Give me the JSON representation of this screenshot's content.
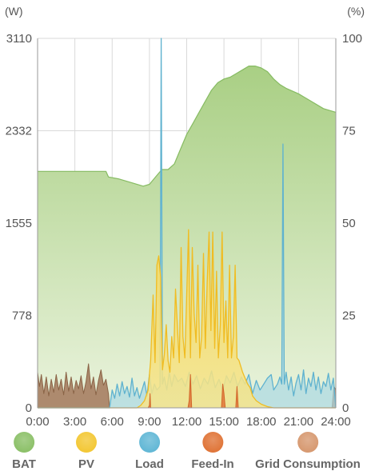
{
  "chart_data": {
    "type": "area",
    "left_unit": "(W)",
    "right_unit": "(%)",
    "x_ticks": [
      "0:00",
      "3:00",
      "6:00",
      "9:00",
      "12:00",
      "15:00",
      "18:00",
      "21:00",
      "24:00"
    ],
    "y_left_ticks": [
      "0",
      "778",
      "1555",
      "2332",
      "3110"
    ],
    "y_right_ticks": [
      "0",
      "25",
      "50",
      "75",
      "100"
    ],
    "xlim": [
      0,
      24
    ],
    "ylim_left": [
      0,
      3110
    ],
    "ylim_right": [
      0,
      100
    ],
    "grid": true,
    "series": [
      {
        "name": "BAT",
        "axis": "right",
        "color": "#8dc16a",
        "x": [
          0,
          5.5,
          5.7,
          6.5,
          7.5,
          8.5,
          9.0,
          9.5,
          10.0,
          10.5,
          11.0,
          11.5,
          12.0,
          12.5,
          13.0,
          13.5,
          14.0,
          14.5,
          15.0,
          15.5,
          16.0,
          16.5,
          17.0,
          17.5,
          18.0,
          18.5,
          19.0,
          19.5,
          20.0,
          21.0,
          22.0,
          23.0,
          24.0
        ],
        "values": [
          64,
          64,
          62.5,
          62,
          61,
          60,
          60.5,
          62.5,
          64.5,
          64.5,
          66,
          70,
          74,
          77,
          80,
          83,
          86,
          88,
          89,
          89.5,
          90.5,
          91.5,
          92.5,
          92.5,
          92,
          91,
          89,
          87.5,
          86.5,
          85,
          83,
          81,
          80
        ]
      },
      {
        "name": "PV",
        "axis": "left",
        "color": "#f3c837",
        "x": [
          0,
          8.0,
          8.3,
          8.6,
          8.9,
          9.1,
          9.3,
          9.45,
          9.6,
          9.75,
          9.9,
          10.05,
          10.2,
          10.35,
          10.5,
          10.65,
          10.8,
          10.95,
          11.1,
          11.25,
          11.4,
          11.55,
          11.7,
          11.85,
          12.0,
          12.15,
          12.3,
          12.45,
          12.6,
          12.75,
          12.9,
          13.05,
          13.2,
          13.35,
          13.5,
          13.65,
          13.8,
          13.95,
          14.1,
          14.25,
          14.4,
          14.55,
          14.7,
          14.85,
          15.0,
          15.15,
          15.3,
          15.45,
          15.6,
          15.75,
          15.9,
          16.05,
          16.2,
          16.35,
          16.5,
          16.7,
          16.9,
          17.1,
          17.3,
          17.6,
          18.0,
          18.5,
          19.0,
          24.0
        ],
        "values": [
          0,
          0,
          20,
          60,
          150,
          400,
          950,
          380,
          1200,
          1280,
          1100,
          320,
          450,
          700,
          400,
          300,
          600,
          420,
          1000,
          700,
          380,
          1350,
          600,
          420,
          950,
          1500,
          420,
          1350,
          800,
          550,
          1200,
          420,
          600,
          1300,
          500,
          1050,
          1480,
          650,
          1480,
          500,
          1150,
          420,
          700,
          1480,
          550,
          900,
          420,
          1200,
          420,
          600,
          1200,
          420,
          400,
          350,
          300,
          250,
          200,
          170,
          100,
          60,
          30,
          10,
          0,
          0
        ]
      },
      {
        "name": "Load",
        "axis": "left",
        "color": "#63b8d6",
        "x": [
          0,
          5.8,
          6.0,
          6.2,
          6.4,
          6.6,
          6.8,
          7.0,
          7.2,
          7.4,
          7.6,
          7.8,
          8.0,
          8.2,
          8.4,
          8.6,
          8.8,
          9.0,
          9.2,
          9.4,
          9.6,
          9.85,
          9.95,
          10.05,
          10.2,
          10.4,
          10.6,
          10.8,
          11.0,
          11.3,
          11.6,
          11.9,
          12.2,
          12.5,
          12.8,
          13.1,
          13.4,
          13.7,
          14.0,
          14.3,
          14.6,
          14.9,
          15.2,
          15.5,
          15.8,
          16.1,
          16.4,
          16.7,
          17.0,
          17.3,
          17.6,
          17.9,
          18.2,
          18.5,
          18.8,
          19.0,
          19.3,
          19.5,
          19.65,
          19.75,
          19.85,
          20.0,
          20.2,
          20.4,
          20.6,
          20.8,
          21.0,
          21.2,
          21.4,
          21.6,
          21.8,
          22.0,
          22.2,
          22.4,
          22.6,
          22.8,
          23.0,
          23.2,
          23.4,
          23.6,
          23.8,
          24.0
        ],
        "values": [
          0,
          0,
          150,
          80,
          200,
          100,
          220,
          120,
          180,
          90,
          250,
          100,
          170,
          80,
          150,
          220,
          100,
          280,
          120,
          200,
          150,
          180,
          3110,
          200,
          260,
          150,
          300,
          180,
          280,
          220,
          250,
          180,
          300,
          200,
          270,
          160,
          250,
          200,
          310,
          170,
          240,
          150,
          270,
          210,
          300,
          180,
          260,
          200,
          280,
          120,
          230,
          150,
          200,
          250,
          280,
          150,
          200,
          260,
          200,
          2220,
          200,
          300,
          150,
          260,
          100,
          210,
          280,
          150,
          320,
          120,
          250,
          180,
          300,
          150,
          260,
          120,
          220,
          180,
          290,
          150,
          250,
          0
        ]
      },
      {
        "name": "Feed-In",
        "axis": "left",
        "color": "#e0763a",
        "x": [
          0,
          8.9,
          9.0,
          9.05,
          9.1,
          12.1,
          12.2,
          12.3,
          12.4,
          14.8,
          14.9,
          15.0,
          15.1,
          15.95,
          16.05,
          16.15,
          24.0
        ],
        "values": [
          0,
          0,
          20,
          120,
          0,
          0,
          60,
          280,
          0,
          0,
          200,
          120,
          0,
          0,
          180,
          0,
          0
        ]
      },
      {
        "name": "Grid Consumption",
        "axis": "left",
        "color": "#d79a72",
        "x": [
          0,
          0.15,
          0.3,
          0.5,
          0.7,
          0.9,
          1.1,
          1.3,
          1.5,
          1.7,
          1.9,
          2.1,
          2.3,
          2.5,
          2.7,
          2.9,
          3.1,
          3.3,
          3.5,
          3.7,
          3.9,
          4.1,
          4.3,
          4.5,
          4.7,
          4.9,
          5.1,
          5.3,
          5.5,
          5.7,
          5.8,
          23.7,
          23.85,
          24.0
        ],
        "values": [
          300,
          180,
          280,
          120,
          260,
          100,
          240,
          130,
          280,
          150,
          240,
          110,
          300,
          140,
          260,
          120,
          230,
          160,
          270,
          120,
          220,
          370,
          160,
          260,
          110,
          230,
          320,
          190,
          240,
          120,
          0,
          0,
          180,
          150
        ]
      }
    ]
  },
  "legend": [
    {
      "label": "BAT",
      "color": "#8dc16a"
    },
    {
      "label": "PV",
      "color": "#f3c837"
    },
    {
      "label": "Load",
      "color": "#63b8d6"
    },
    {
      "label": "Feed-In",
      "color": "#e0763a"
    },
    {
      "label": "Grid Consumption",
      "color": "#d79a72"
    }
  ]
}
